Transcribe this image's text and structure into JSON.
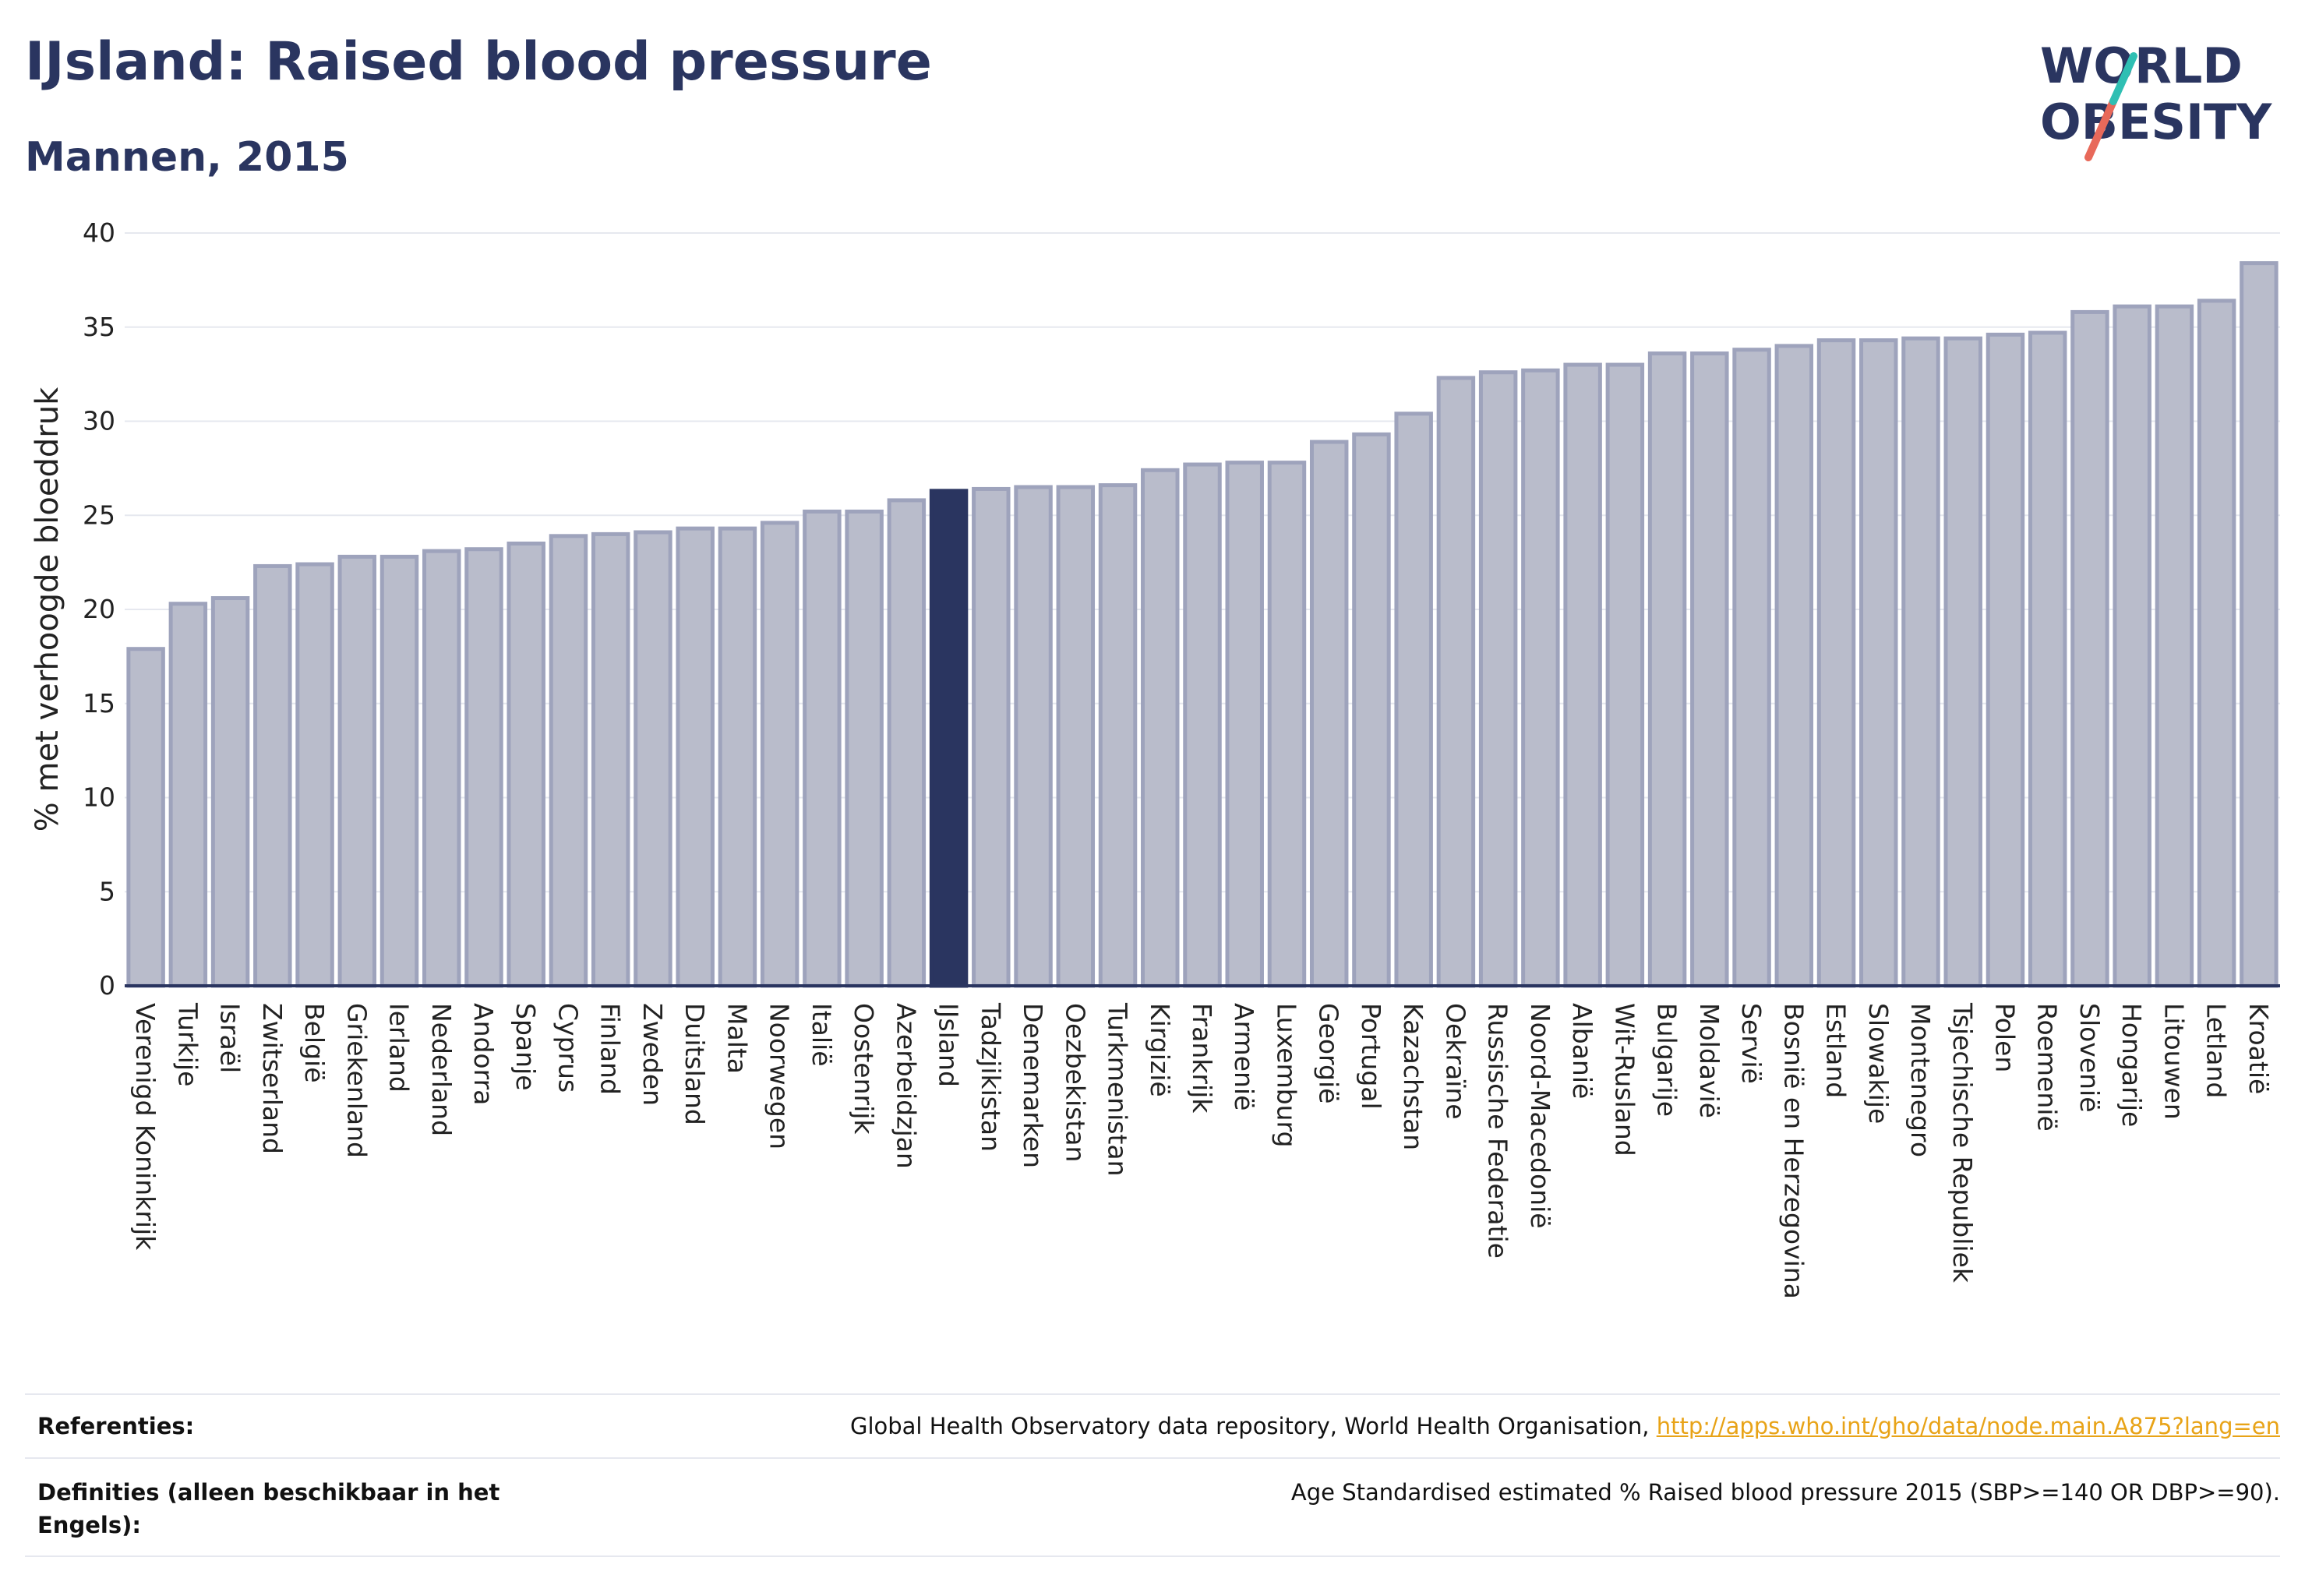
{
  "header": {
    "title": "IJsland: Raised blood pressure",
    "subtitle": "Mannen, 2015"
  },
  "logo": {
    "line1": "WORLD",
    "line2": "OBESITY",
    "text_color": "#2a3560",
    "slash_colors": [
      "#2fbfb3",
      "#e8695a"
    ]
  },
  "colors": {
    "bar": "#b9bccb",
    "bar_border": "#9ea3bc",
    "highlight": "#2a3560"
  },
  "chart_data": {
    "type": "bar",
    "title": "",
    "xlabel": "",
    "ylabel": "% met verhoogde bloeddruk",
    "ylim": [
      0,
      40
    ],
    "yticks": [
      0,
      5,
      10,
      15,
      20,
      25,
      30,
      35,
      40
    ],
    "grid": true,
    "highlight": "IJsland",
    "categories": [
      "Verenigd Koninkrijk",
      "Turkije",
      "Israël",
      "Zwitserland",
      "België",
      "Griekenland",
      "Ierland",
      "Nederland",
      "Andorra",
      "Spanje",
      "Cyprus",
      "Finland",
      "Zweden",
      "Duitsland",
      "Malta",
      "Noorwegen",
      "Italië",
      "Oostenrijk",
      "Azerbeidzjan",
      "IJsland",
      "Tadzjikistan",
      "Denemarken",
      "Oezbekistan",
      "Turkmenistan",
      "Kirgizië",
      "Frankrijk",
      "Armenië",
      "Luxemburg",
      "Georgië",
      "Portugal",
      "Kazachstan",
      "Oekraïne",
      "Russische Federatie",
      "Noord-Macedonië",
      "Albanië",
      "Wit-Rusland",
      "Bulgarije",
      "Moldavië",
      "Servië",
      "Bosnië en Herzegovina",
      "Estland",
      "Slowakije",
      "Montenegro",
      "Tsjechische Republiek",
      "Polen",
      "Roemenië",
      "Slovenië",
      "Hongarije",
      "Litouwen",
      "Letland",
      "Kroatië"
    ],
    "values": [
      17.9,
      20.3,
      20.6,
      22.3,
      22.4,
      22.8,
      22.8,
      23.1,
      23.2,
      23.5,
      23.9,
      24.0,
      24.1,
      24.3,
      24.3,
      24.6,
      25.2,
      25.2,
      25.8,
      26.3,
      26.4,
      26.5,
      26.5,
      26.6,
      27.4,
      27.7,
      27.8,
      27.8,
      28.9,
      29.3,
      30.4,
      32.3,
      32.6,
      32.7,
      33.0,
      33.0,
      33.6,
      33.6,
      33.8,
      34.0,
      34.3,
      34.3,
      34.4,
      34.4,
      34.6,
      34.7,
      35.8,
      36.1,
      36.1,
      36.4,
      38.4
    ]
  },
  "references": {
    "label": "Referenties:",
    "text": "Global Health Observatory data repository, World Health Organisation, ",
    "link": "http://apps.who.int/gho/data/node.main.A875?lang=en"
  },
  "definitions": {
    "label": "Definities (alleen beschikbaar in het Engels):",
    "text": "Age Standardised estimated % Raised blood pressure 2015 (SBP>=140 OR DBP>=90)."
  }
}
